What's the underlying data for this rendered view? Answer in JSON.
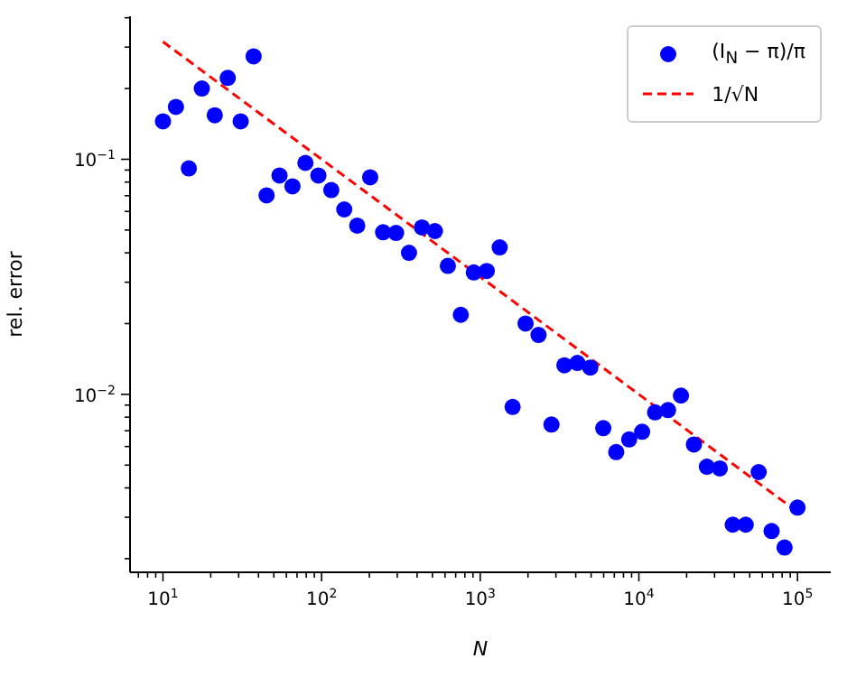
{
  "chart_data": {
    "type": "scatter",
    "xlabel": "N",
    "ylabel": "rel. error",
    "log": "xy",
    "legend": "top right",
    "xlim": [
      6.2,
      162000
    ],
    "ylim": [
      0.00175,
      0.406
    ],
    "xticks": [
      {
        "value": 7,
        "label": null
      },
      {
        "value": 8,
        "label": null
      },
      {
        "value": 9,
        "label": null
      },
      {
        "value": 10,
        "label": "10$^{1}$"
      },
      {
        "value": 20,
        "label": null
      },
      {
        "value": 30,
        "label": null
      },
      {
        "value": 40,
        "label": null
      },
      {
        "value": 50,
        "label": null
      },
      {
        "value": 60,
        "label": null
      },
      {
        "value": 70,
        "label": null
      },
      {
        "value": 80,
        "label": null
      },
      {
        "value": 90,
        "label": null
      },
      {
        "value": 100,
        "label": "10$^{2}$"
      },
      {
        "value": 200,
        "label": null
      },
      {
        "value": 300,
        "label": null
      },
      {
        "value": 400,
        "label": null
      },
      {
        "value": 500,
        "label": null
      },
      {
        "value": 600,
        "label": null
      },
      {
        "value": 700,
        "label": null
      },
      {
        "value": 800,
        "label": null
      },
      {
        "value": 900,
        "label": null
      },
      {
        "value": 1000,
        "label": "10$^{3}$"
      },
      {
        "value": 2000,
        "label": null
      },
      {
        "value": 3000,
        "label": null
      },
      {
        "value": 4000,
        "label": null
      },
      {
        "value": 5000,
        "label": null
      },
      {
        "value": 6000,
        "label": null
      },
      {
        "value": 7000,
        "label": null
      },
      {
        "value": 8000,
        "label": null
      },
      {
        "value": 9000,
        "label": null
      },
      {
        "value": 10000,
        "label": "10$^{4}$"
      },
      {
        "value": 20000,
        "label": null
      },
      {
        "value": 30000,
        "label": null
      },
      {
        "value": 40000,
        "label": null
      },
      {
        "value": 50000,
        "label": null
      },
      {
        "value": 60000,
        "label": null
      },
      {
        "value": 70000,
        "label": null
      },
      {
        "value": 80000,
        "label": null
      },
      {
        "value": 90000,
        "label": null
      },
      {
        "value": 100000,
        "label": "10$^{5}$"
      }
    ],
    "yticks": [
      {
        "value": 0.002,
        "label": null
      },
      {
        "value": 0.003,
        "label": null
      },
      {
        "value": 0.004,
        "label": null
      },
      {
        "value": 0.005,
        "label": null
      },
      {
        "value": 0.006,
        "label": null
      },
      {
        "value": 0.007,
        "label": null
      },
      {
        "value": 0.008,
        "label": null
      },
      {
        "value": 0.009,
        "label": null
      },
      {
        "value": 0.01,
        "label": "10$^{−2}$"
      },
      {
        "value": 0.02,
        "label": null
      },
      {
        "value": 0.03,
        "label": null
      },
      {
        "value": 0.04,
        "label": null
      },
      {
        "value": 0.05,
        "label": null
      },
      {
        "value": 0.06,
        "label": null
      },
      {
        "value": 0.07,
        "label": null
      },
      {
        "value": 0.08,
        "label": null
      },
      {
        "value": 0.09,
        "label": null
      },
      {
        "value": 0.1,
        "label": "10$^{−1}$"
      },
      {
        "value": 0.2,
        "label": null
      },
      {
        "value": 0.3,
        "label": null
      },
      {
        "value": 0.4,
        "label": null
      }
    ],
    "series": [
      {
        "name": "(I$_{N}$ − π)/π",
        "color": "#0000ff",
        "marker": "circle",
        "x": [
          10,
          12.07,
          14.56,
          17.58,
          21.21,
          25.6,
          30.89,
          37.28,
          44.99,
          54.29,
          65.51,
          79.06,
          95.41,
          115.1,
          138.9,
          167.7,
          202.4,
          244.2,
          294.7,
          355.6,
          429.2,
          517.9,
          625.1,
          754.3,
          910.3,
          1099,
          1326,
          1600,
          1931,
          2330,
          2812,
          3393,
          4095,
          4942,
          5964,
          7197,
          8685,
          10481,
          12649,
          15264,
          18421,
          22230,
          26827,
          32375,
          39069,
          47149,
          56899,
          68665,
          82864,
          100000
        ],
        "values": [
          0.145,
          0.167,
          0.0915,
          0.2,
          0.154,
          0.222,
          0.145,
          0.274,
          0.0702,
          0.0853,
          0.0767,
          0.0965,
          0.0853,
          0.074,
          0.0612,
          0.0522,
          0.0838,
          0.0489,
          0.0486,
          0.04,
          0.0513,
          0.0495,
          0.0352,
          0.0218,
          0.033,
          0.0335,
          0.0422,
          0.00884,
          0.02,
          0.0179,
          0.00744,
          0.0133,
          0.0136,
          0.013,
          0.00718,
          0.00568,
          0.00643,
          0.00693,
          0.00838,
          0.00857,
          0.00988,
          0.00612,
          0.00492,
          0.00484,
          0.00279,
          0.00279,
          0.00467,
          0.00262,
          0.00223,
          0.0033
        ]
      },
      {
        "name": "1/√N",
        "type": "line",
        "color": "#ff0000",
        "line_style": "dashed",
        "marker": "none",
        "x": [
          10,
          100000
        ],
        "values": [
          0.3162,
          0.003162
        ]
      }
    ]
  }
}
